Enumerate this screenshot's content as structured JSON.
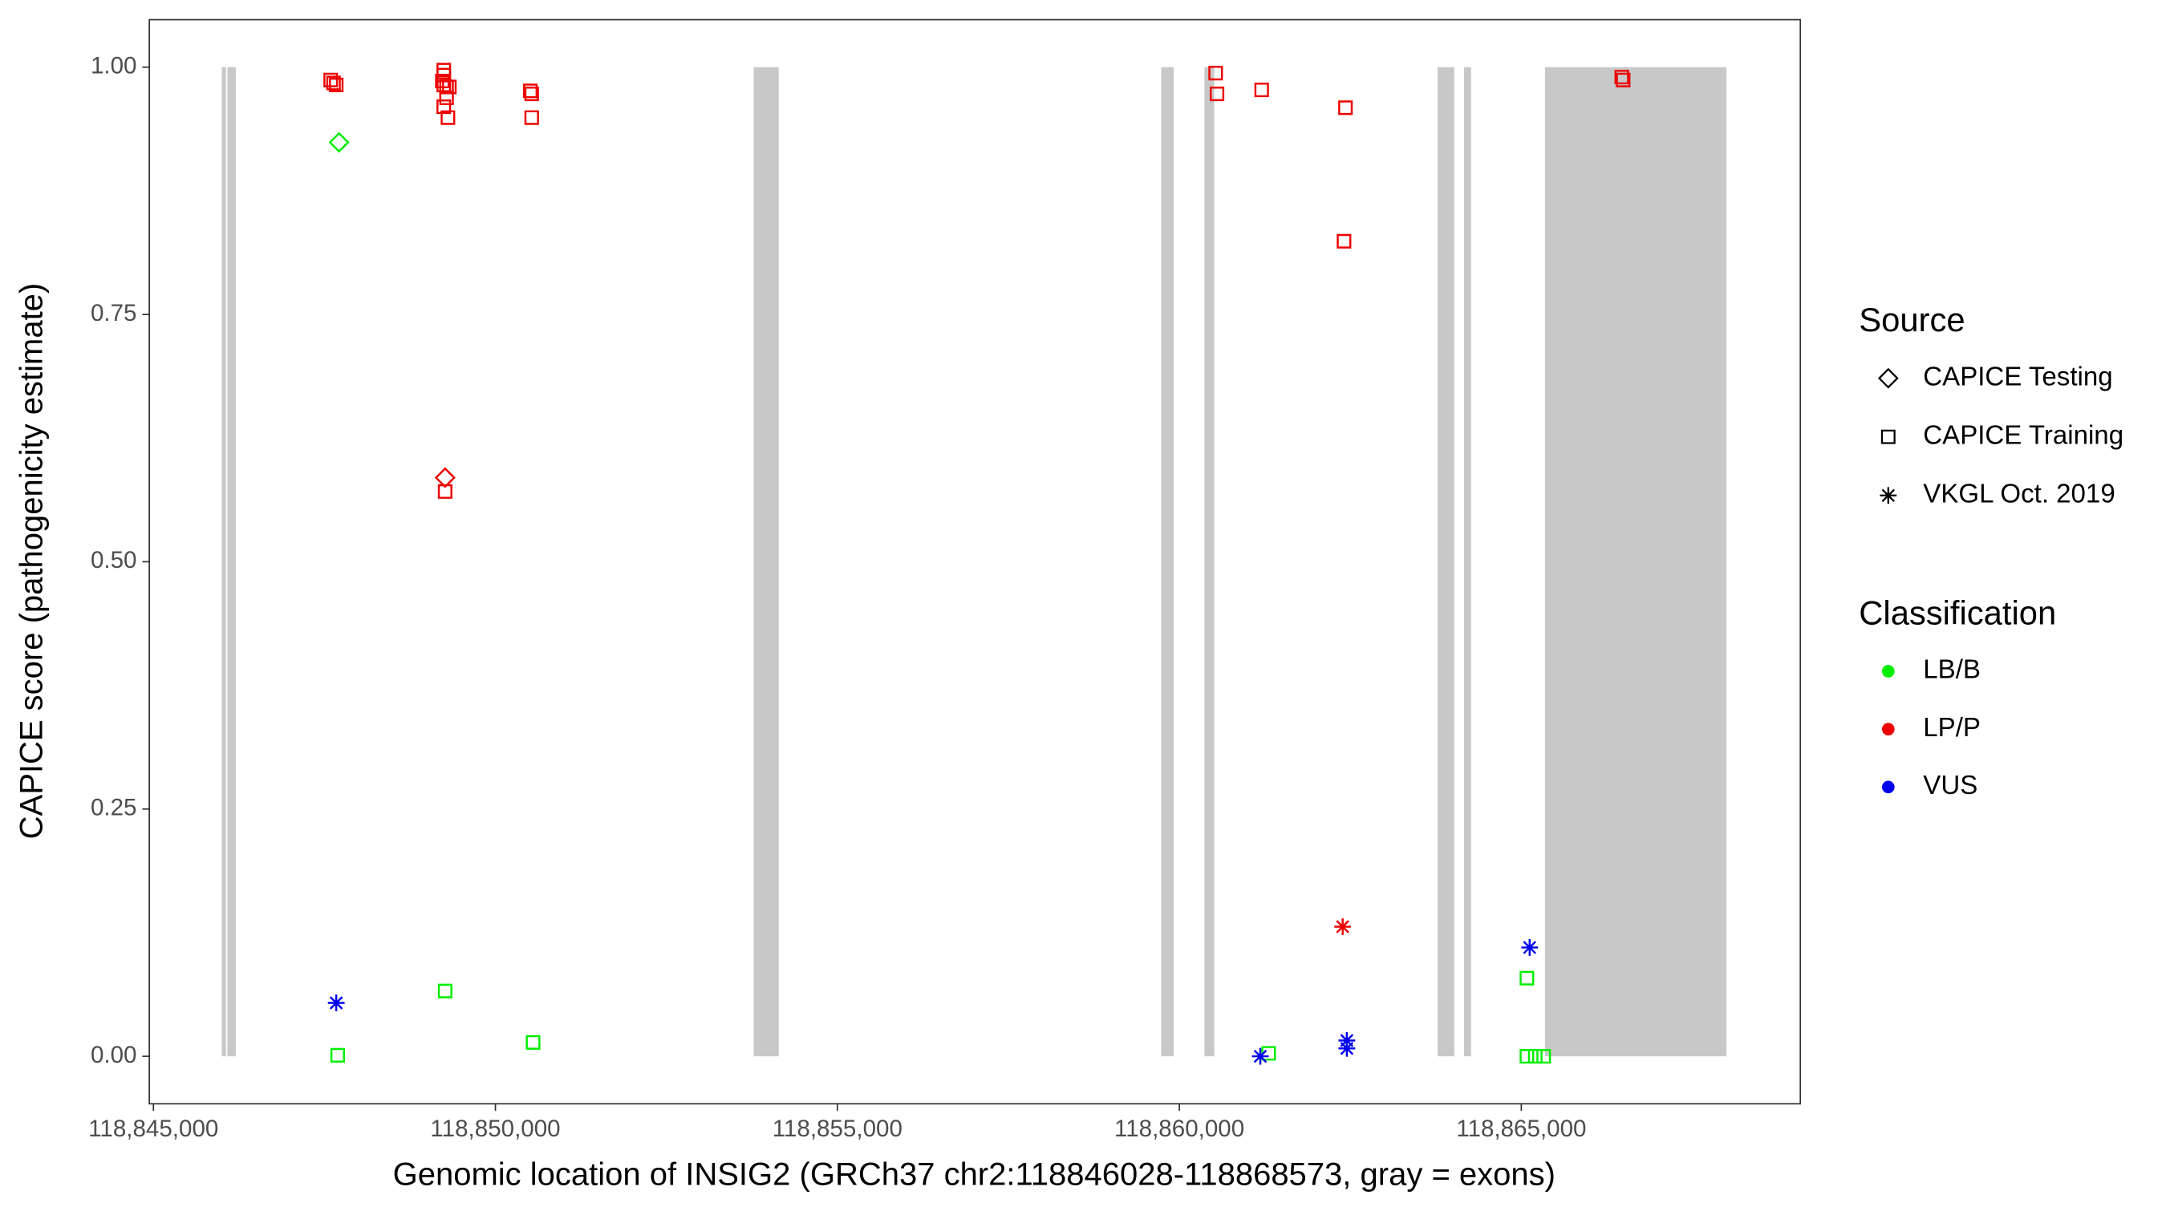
{
  "chart_data": {
    "type": "scatter",
    "x_label": "Genomic location of INSIG2 (GRCh37 chr2:118846028-118868573, gray = exons)",
    "y_label": "CAPICE score (pathogenicity estimate)",
    "xlim": [
      118844940,
      118869080
    ],
    "ylim": [
      -0.048,
      1.048
    ],
    "xticks": [
      {
        "value": 118845000,
        "label": "118,845,000"
      },
      {
        "value": 118850000,
        "label": "118,850,000"
      },
      {
        "value": 118855000,
        "label": "118,855,000"
      },
      {
        "value": 118860000,
        "label": "118,860,000"
      },
      {
        "value": 118865000,
        "label": "118,865,000"
      }
    ],
    "yticks": [
      {
        "value": 0,
        "label": "0.00"
      },
      {
        "value": 0.25,
        "label": "0.25"
      },
      {
        "value": 0.5,
        "label": "0.50"
      },
      {
        "value": 0.75,
        "label": "0.75"
      },
      {
        "value": 1,
        "label": "1.00"
      }
    ],
    "grid": false,
    "exons": {
      "color": "#c8c8c8",
      "start": [
        118846000,
        118846082,
        118853776,
        118859735,
        118860367,
        118863776,
        118864163,
        118865347
      ],
      "end": [
        118846061,
        118846204,
        118854143,
        118859918,
        118860510,
        118864020,
        118864265,
        118868000
      ]
    },
    "legend": {
      "source": {
        "title": "Source",
        "items": [
          {
            "label": "CAPICE Testing",
            "shape": "diamond"
          },
          {
            "label": "CAPICE Training",
            "shape": "square"
          },
          {
            "label": "VKGL Oct. 2019",
            "shape": "asterisk"
          }
        ]
      },
      "classification": {
        "title": "Classification",
        "items": [
          {
            "label": "LB/B",
            "color": "#00ee00"
          },
          {
            "label": "LP/P",
            "color": "#ee0000"
          },
          {
            "label": "VUS",
            "color": "#0000ee"
          }
        ]
      }
    },
    "series": [
      {
        "source": "CAPICE Testing",
        "classification": "LB/B",
        "x": [
          118847714
        ],
        "values": [
          0.924
        ]
      },
      {
        "source": "CAPICE Testing",
        "classification": "LP/P",
        "x": [
          118849265
        ],
        "values": [
          0.585
        ]
      },
      {
        "source": "CAPICE Training",
        "classification": "LP/P",
        "x": [
          118847592,
          118847633,
          118847673,
          118849245,
          118849245,
          118849224,
          118849245,
          118849286,
          118849286,
          118849245,
          118849306,
          118849327,
          118849265,
          118850510,
          118850531,
          118850531,
          118860531,
          118860551,
          118861204,
          118862429,
          118862408,
          118866469,
          118866490
        ],
        "values": [
          0.987,
          0.984,
          0.982,
          0.997,
          0.992,
          0.986,
          0.982,
          0.98,
          0.969,
          0.96,
          0.949,
          0.98,
          0.571,
          0.976,
          0.973,
          0.949,
          0.994,
          0.973,
          0.977,
          0.959,
          0.824,
          0.99,
          0.987
        ]
      },
      {
        "source": "CAPICE Training",
        "classification": "LB/B",
        "x": [
          118847694,
          118849265,
          118850551,
          118861306,
          118865082,
          118865082,
          118865204,
          118865327
        ],
        "values": [
          0.001,
          0.066,
          0.014,
          0.003,
          0.079,
          0,
          0,
          0
        ]
      },
      {
        "source": "VKGL Oct. 2019",
        "classification": "VUS",
        "x": [
          118847673,
          118861184,
          118862449,
          118862449,
          118865122
        ],
        "values": [
          0.054,
          0,
          0.016,
          0.008,
          0.11
        ]
      },
      {
        "source": "VKGL Oct. 2019",
        "classification": "LP/P",
        "x": [
          118862388
        ],
        "values": [
          0.131
        ]
      }
    ]
  }
}
